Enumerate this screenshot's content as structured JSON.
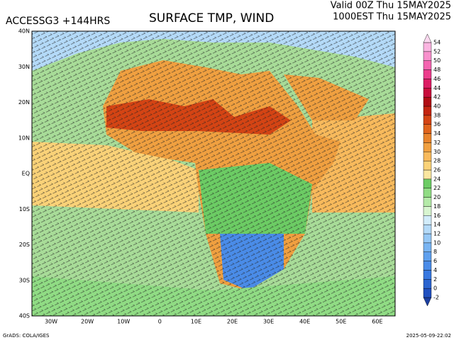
{
  "header": {
    "model": "ACCESSG3 +144HRS",
    "title": "SURFACE TMP, WIND",
    "valid": "Valid 00Z Thu 15MAY2025",
    "local": "1000EST Thu 15MAY2025"
  },
  "lat_labels": [
    "40N",
    "30N",
    "20N",
    "10N",
    "EQ",
    "10S",
    "20S",
    "30S",
    "40S"
  ],
  "lon_labels": [
    "30W",
    "20W",
    "10W",
    "0",
    "10E",
    "20E",
    "30E",
    "40E",
    "50E",
    "60E"
  ],
  "colorbar": {
    "levels": [
      -2,
      0,
      2,
      4,
      6,
      8,
      10,
      12,
      14,
      16,
      18,
      20,
      22,
      24,
      26,
      28,
      30,
      32,
      34,
      36,
      38,
      40,
      42,
      44,
      46,
      48,
      50,
      52,
      54
    ],
    "colors": [
      "#1c3fa0",
      "#2050c0",
      "#2a64d0",
      "#3778e0",
      "#4a8ce8",
      "#5ea0ee",
      "#78b4f2",
      "#96c8f6",
      "#b4daf8",
      "#d2ecfa",
      "#d8f5d0",
      "#b4eaa8",
      "#90dc84",
      "#6ccc64",
      "#fae6a0",
      "#fad278",
      "#f8ba5c",
      "#f0a040",
      "#e8842c",
      "#e0641c",
      "#d44414",
      "#c42410",
      "#b00c14",
      "#c80c3c",
      "#dc1c64",
      "#ec3c8c",
      "#f464b0",
      "#f890cc",
      "#fab4e0",
      "#fcd8f0"
    ]
  },
  "footer": {
    "credit": "GrADS: COLA/IGES",
    "timestamp": "2025-05-09-22:02"
  }
}
